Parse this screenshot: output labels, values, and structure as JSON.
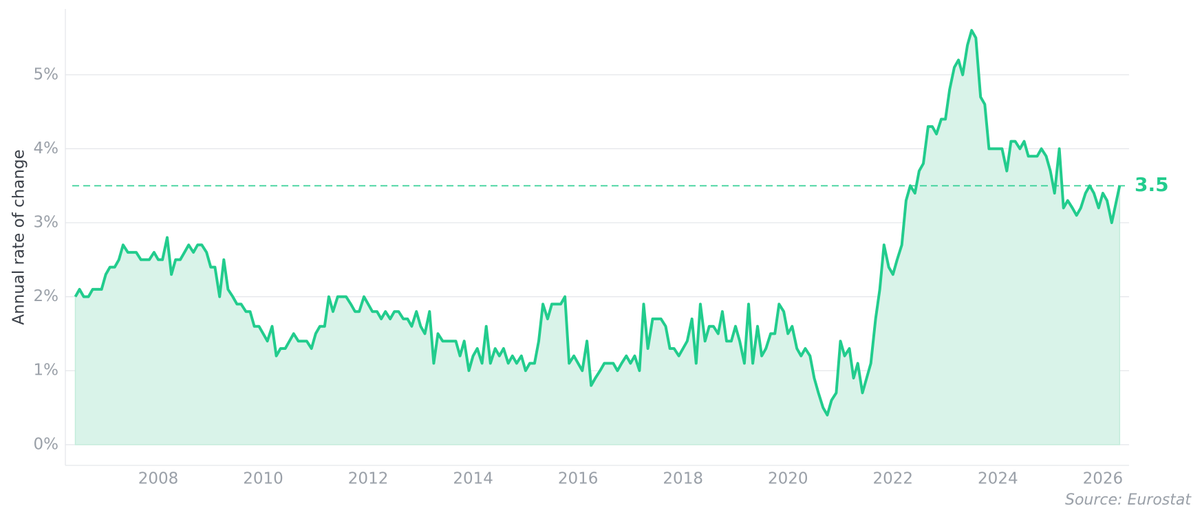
{
  "chart_data": {
    "type": "area",
    "y_label": "Annual rate of change",
    "source": "Source: Eurostat",
    "color": "#22cc8d",
    "fill_color": "#d9f3e9",
    "grid": true,
    "reference_line": 3.5,
    "xlim": [
      2006.23,
      2026.5
    ],
    "ylim": [
      -0.28,
      5.89
    ],
    "xticks": [
      2008,
      2010,
      2012,
      2014,
      2016,
      2018,
      2020,
      2022,
      2024,
      2026
    ],
    "yticks": [
      {
        "value": 0,
        "label": "0%"
      },
      {
        "value": 1,
        "label": "1%"
      },
      {
        "value": 2,
        "label": "2%"
      },
      {
        "value": 3,
        "label": "3%"
      },
      {
        "value": 4,
        "label": "4%"
      },
      {
        "value": 5,
        "label": "5%"
      }
    ],
    "x": [
      2006.42,
      2006.5,
      2006.58,
      2006.67,
      2006.75,
      2006.92,
      2007.0,
      2007.08,
      2007.17,
      2007.25,
      2007.33,
      2007.42,
      2007.58,
      2007.67,
      2007.83,
      2007.92,
      2008.0,
      2008.08,
      2008.17,
      2008.25,
      2008.33,
      2008.42,
      2008.5,
      2008.58,
      2008.67,
      2008.75,
      2008.83,
      2008.92,
      2009.0,
      2009.08,
      2009.17,
      2009.25,
      2009.33,
      2009.42,
      2009.5,
      2009.58,
      2009.67,
      2009.75,
      2009.83,
      2009.92,
      2010.0,
      2010.08,
      2010.17,
      2010.25,
      2010.33,
      2010.42,
      2010.5,
      2010.58,
      2010.67,
      2010.83,
      2010.92,
      2011.0,
      2011.08,
      2011.17,
      2011.25,
      2011.33,
      2011.42,
      2011.58,
      2011.67,
      2011.75,
      2011.83,
      2011.92,
      2012.0,
      2012.08,
      2012.17,
      2012.25,
      2012.33,
      2012.42,
      2012.5,
      2012.58,
      2012.67,
      2012.75,
      2012.83,
      2012.92,
      2013.0,
      2013.08,
      2013.17,
      2013.25,
      2013.33,
      2013.42,
      2013.67,
      2013.75,
      2013.83,
      2013.92,
      2014.0,
      2014.08,
      2014.17,
      2014.25,
      2014.33,
      2014.42,
      2014.5,
      2014.58,
      2014.67,
      2014.75,
      2014.83,
      2014.92,
      2015.0,
      2015.08,
      2015.17,
      2015.25,
      2015.33,
      2015.42,
      2015.5,
      2015.67,
      2015.75,
      2015.83,
      2015.92,
      2016.0,
      2016.08,
      2016.17,
      2016.25,
      2016.33,
      2016.42,
      2016.5,
      2016.67,
      2016.75,
      2016.83,
      2016.92,
      2017.0,
      2017.08,
      2017.17,
      2017.25,
      2017.33,
      2017.42,
      2017.58,
      2017.67,
      2017.75,
      2017.83,
      2017.92,
      2018.0,
      2018.08,
      2018.17,
      2018.25,
      2018.33,
      2018.42,
      2018.5,
      2018.58,
      2018.67,
      2018.75,
      2018.83,
      2018.92,
      2019.0,
      2019.08,
      2019.17,
      2019.25,
      2019.33,
      2019.42,
      2019.5,
      2019.58,
      2019.67,
      2019.75,
      2019.83,
      2019.92,
      2020.0,
      2020.08,
      2020.17,
      2020.25,
      2020.33,
      2020.42,
      2020.5,
      2020.58,
      2020.67,
      2020.75,
      2020.83,
      2020.92,
      2021.0,
      2021.08,
      2021.17,
      2021.25,
      2021.33,
      2021.42,
      2021.5,
      2021.58,
      2021.67,
      2021.75,
      2021.83,
      2021.92,
      2022.0,
      2022.08,
      2022.17,
      2022.25,
      2022.33,
      2022.42,
      2022.5,
      2022.58,
      2022.67,
      2022.75,
      2022.83,
      2022.92,
      2023.0,
      2023.08,
      2023.17,
      2023.25,
      2023.33,
      2023.42,
      2023.5,
      2023.58,
      2023.67,
      2023.75,
      2023.83,
      2024.08,
      2024.17,
      2024.25,
      2024.33,
      2024.42,
      2024.5,
      2024.58,
      2024.75,
      2024.83,
      2024.92,
      2025.0,
      2025.08,
      2025.17,
      2025.25,
      2025.33,
      2025.42,
      2025.5,
      2025.58,
      2025.67,
      2025.75,
      2025.83,
      2025.92,
      2026.0,
      2026.08,
      2026.17,
      2026.32
    ],
    "values": [
      2.0,
      2.1,
      2.0,
      2.0,
      2.1,
      2.1,
      2.3,
      2.4,
      2.4,
      2.5,
      2.7,
      2.6,
      2.6,
      2.5,
      2.5,
      2.6,
      2.5,
      2.5,
      2.8,
      2.3,
      2.5,
      2.5,
      2.6,
      2.7,
      2.6,
      2.7,
      2.7,
      2.6,
      2.4,
      2.4,
      2.0,
      2.5,
      2.1,
      2.0,
      1.9,
      1.9,
      1.8,
      1.8,
      1.6,
      1.6,
      1.5,
      1.4,
      1.6,
      1.2,
      1.3,
      1.3,
      1.4,
      1.5,
      1.4,
      1.4,
      1.3,
      1.5,
      1.6,
      1.6,
      2.0,
      1.8,
      2.0,
      2.0,
      1.9,
      1.8,
      1.8,
      2.0,
      1.9,
      1.8,
      1.8,
      1.7,
      1.8,
      1.7,
      1.8,
      1.8,
      1.7,
      1.7,
      1.6,
      1.8,
      1.6,
      1.5,
      1.8,
      1.1,
      1.5,
      1.4,
      1.4,
      1.2,
      1.4,
      1.0,
      1.2,
      1.3,
      1.1,
      1.6,
      1.1,
      1.3,
      1.2,
      1.3,
      1.1,
      1.2,
      1.1,
      1.2,
      1.0,
      1.1,
      1.1,
      1.4,
      1.9,
      1.7,
      1.9,
      1.9,
      2.0,
      1.1,
      1.2,
      1.1,
      1.0,
      1.4,
      0.8,
      0.9,
      1.0,
      1.1,
      1.1,
      1.0,
      1.1,
      1.2,
      1.1,
      1.2,
      1.0,
      1.9,
      1.3,
      1.7,
      1.7,
      1.6,
      1.3,
      1.3,
      1.2,
      1.3,
      1.4,
      1.7,
      1.1,
      1.9,
      1.4,
      1.6,
      1.6,
      1.5,
      1.8,
      1.4,
      1.4,
      1.6,
      1.4,
      1.1,
      1.9,
      1.1,
      1.6,
      1.2,
      1.3,
      1.5,
      1.5,
      1.9,
      1.8,
      1.5,
      1.6,
      1.3,
      1.2,
      1.3,
      1.2,
      0.9,
      0.7,
      0.5,
      0.4,
      0.6,
      0.7,
      1.4,
      1.2,
      1.3,
      0.9,
      1.1,
      0.7,
      0.9,
      1.1,
      1.7,
      2.1,
      2.7,
      2.4,
      2.3,
      2.5,
      2.7,
      3.3,
      3.5,
      3.4,
      3.7,
      3.8,
      4.3,
      4.3,
      4.2,
      4.4,
      4.4,
      4.8,
      5.1,
      5.2,
      5.0,
      5.4,
      5.6,
      5.5,
      4.7,
      4.6,
      4.0,
      4.0,
      3.7,
      4.1,
      4.1,
      4.0,
      4.1,
      3.9,
      3.9,
      4.0,
      3.9,
      3.7,
      3.4,
      4.0,
      3.2,
      3.3,
      3.2,
      3.1,
      3.2,
      3.4,
      3.5,
      3.4,
      3.2,
      3.4,
      3.3,
      3.0,
      3.5
    ]
  }
}
